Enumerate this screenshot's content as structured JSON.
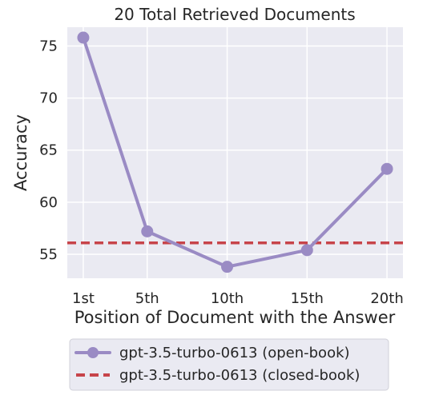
{
  "chart_data": {
    "type": "line",
    "title": "20 Total Retrieved Documents",
    "xlabel": "Position of Document with the Answer",
    "ylabel": "Accuracy",
    "categories": [
      "1st",
      "5th",
      "10th",
      "15th",
      "20th"
    ],
    "x": [
      1,
      5,
      10,
      15,
      20
    ],
    "ylim": [
      52.7,
      76.8
    ],
    "yticks": [
      55,
      60,
      65,
      70,
      75
    ],
    "grid": true,
    "legend_position": "bottom",
    "series": [
      {
        "name": "gpt-3.5-turbo-0613 (open-book)",
        "style": "solid-line-with-markers",
        "color": "#9a8bc4",
        "values": [
          75.8,
          57.2,
          53.8,
          55.4,
          63.2
        ]
      },
      {
        "name": "gpt-3.5-turbo-0613 (closed-book)",
        "style": "dashed-horizontal-line",
        "color": "#c7444a",
        "values": [
          56.1,
          56.1,
          56.1,
          56.1,
          56.1
        ]
      }
    ]
  },
  "colors": {
    "plot_background": "#eaeaf2",
    "grid": "#ffffff",
    "open_book": "#9a8bc4",
    "closed_book": "#c7444a"
  }
}
